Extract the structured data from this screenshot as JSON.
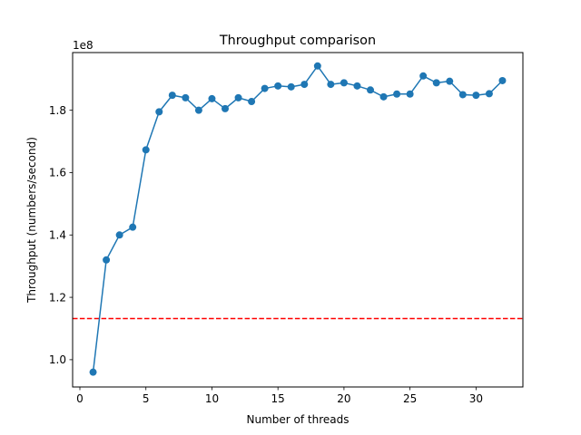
{
  "chart_data": {
    "type": "line",
    "title": "Throughput comparison",
    "xlabel": "Number of threads",
    "ylabel": "Throughput (numbers/second)",
    "y_multiplier_label": "1e8",
    "xlim": [
      -0.55,
      33.55
    ],
    "ylim": [
      0.9125,
      1.985
    ],
    "x_ticks": [
      0,
      5,
      10,
      15,
      20,
      25,
      30
    ],
    "x_tick_labels": [
      "0",
      "5",
      "10",
      "15",
      "20",
      "25",
      "30"
    ],
    "y_ticks": [
      1.0,
      1.2,
      1.4,
      1.6,
      1.8
    ],
    "y_tick_labels": [
      "1.0",
      "1.2",
      "1.4",
      "1.6",
      "1.8"
    ],
    "grid": false,
    "series": [
      {
        "color": "#1f77b4",
        "marker": "circle",
        "x": [
          1,
          2,
          3,
          4,
          5,
          6,
          7,
          8,
          9,
          10,
          11,
          12,
          13,
          14,
          15,
          16,
          17,
          18,
          19,
          20,
          21,
          22,
          23,
          24,
          25,
          26,
          27,
          28,
          29,
          30,
          31,
          32
        ],
        "values": [
          0.96,
          1.32,
          1.4,
          1.425,
          1.673,
          1.795,
          1.848,
          1.84,
          1.8,
          1.837,
          1.805,
          1.84,
          1.828,
          1.87,
          1.878,
          1.875,
          1.883,
          1.942,
          1.883,
          1.888,
          1.878,
          1.865,
          1.843,
          1.852,
          1.852,
          1.91,
          1.888,
          1.893,
          1.85,
          1.848,
          1.853,
          1.895
        ]
      }
    ],
    "reference_lines": [
      {
        "orientation": "horizontal",
        "value": 1.132,
        "color": "#ff0000",
        "style": "dashed"
      }
    ]
  }
}
